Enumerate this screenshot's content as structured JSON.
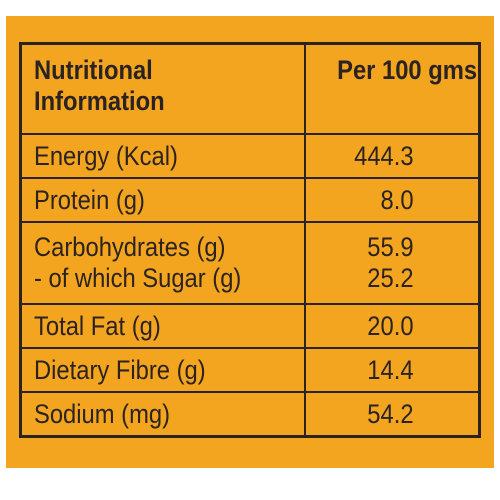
{
  "header": {
    "left_line1": "Nutritional",
    "left_line2": "Information",
    "right": "Per 100 gms"
  },
  "rows": [
    {
      "name": "Energy (Kcal)",
      "value": "444.3"
    },
    {
      "name": "Protein (g)",
      "value": "8.0"
    },
    {
      "name_line1": "Carbohydrates (g)",
      "name_line2": "- of which Sugar (g)",
      "value_line1": "55.9",
      "value_line2": "25.2"
    },
    {
      "name": "Total Fat (g)",
      "value": "20.0"
    },
    {
      "name": "Dietary Fibre (g)",
      "value": "14.4"
    },
    {
      "name": "Sodium (mg)",
      "value": "54.2"
    }
  ],
  "colors": {
    "panel_background": "#f3a51f",
    "text_and_border": "#2b2322"
  }
}
